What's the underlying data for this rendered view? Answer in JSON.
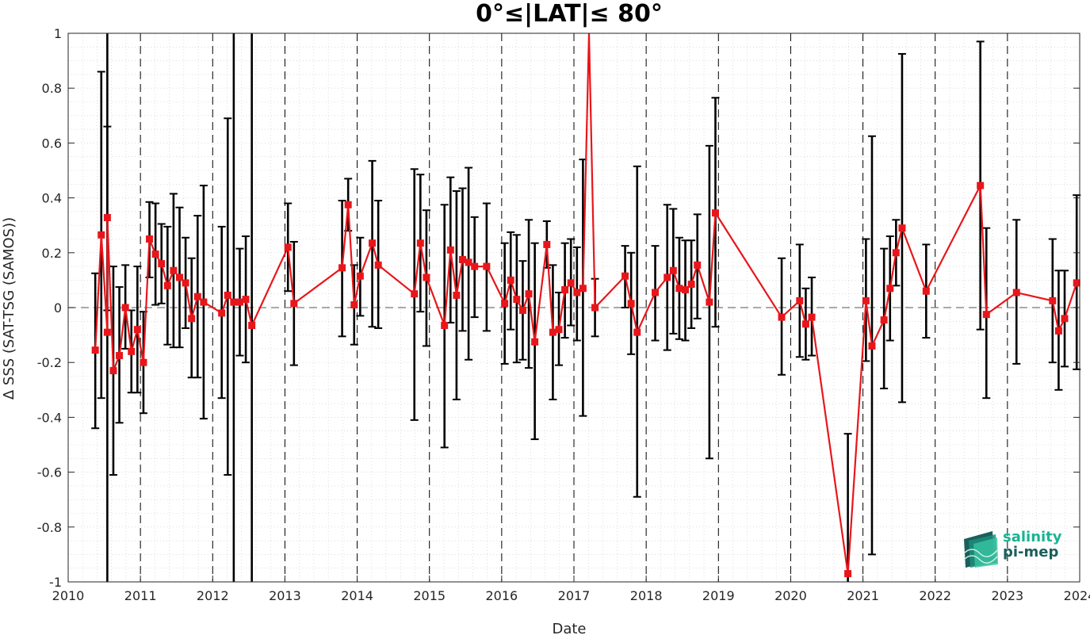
{
  "chart_data": {
    "type": "line",
    "title": "0°≤|LAT|≤ 80°",
    "xlabel": "Date",
    "ylabel": "Δ SSS (SAT-TSG (SAMOS))",
    "xlim": [
      2010.0,
      2024.0
    ],
    "ylim": [
      -1,
      1
    ],
    "x_ticks": [
      "2010",
      "2011",
      "2012",
      "2013",
      "2014",
      "2015",
      "2016",
      "2017",
      "2018",
      "2019",
      "2020",
      "2021",
      "2022",
      "2023",
      "2024"
    ],
    "y_ticks": [
      "1",
      "0.8",
      "0.6",
      "0.4",
      "0.2",
      "0",
      "-0.2",
      "-0.4",
      "-0.6",
      "-0.8",
      "-1"
    ],
    "grid": "dotted minor and major",
    "reference_line": 0,
    "year_separators": "dashed vertical lines",
    "series": [
      {
        "color": "#e8161b",
        "marker": "square",
        "errorbar_color": "#000000",
        "points": [
          {
            "date": "2010-05",
            "y": -0.155,
            "lo": -0.44,
            "hi": 0.125
          },
          {
            "date": "2010-06",
            "y": 0.265,
            "lo": -0.33,
            "hi": 0.86
          },
          {
            "date": "2010-07",
            "y": -0.09,
            "lo": -1.0,
            "hi": 1.0
          },
          {
            "date": "2010-07",
            "y": 0.328,
            "lo": -0.01,
            "hi": 0.66
          },
          {
            "date": "2010-08",
            "y": -0.23,
            "lo": -0.61,
            "hi": 0.15
          },
          {
            "date": "2010-09",
            "y": -0.175,
            "lo": -0.42,
            "hi": 0.075
          },
          {
            "date": "2010-10",
            "y": 0.0,
            "lo": -0.15,
            "hi": 0.155
          },
          {
            "date": "2010-11",
            "y": -0.16,
            "lo": -0.31,
            "hi": -0.01
          },
          {
            "date": "2010-12",
            "y": -0.08,
            "lo": -0.31,
            "hi": 0.15
          },
          {
            "date": "2011-01",
            "y": -0.2,
            "lo": -0.385,
            "hi": -0.015
          },
          {
            "date": "2011-02",
            "y": 0.25,
            "lo": 0.11,
            "hi": 0.385
          },
          {
            "date": "2011-03",
            "y": 0.195,
            "lo": 0.01,
            "hi": 0.38
          },
          {
            "date": "2011-04",
            "y": 0.16,
            "lo": 0.015,
            "hi": 0.305
          },
          {
            "date": "2011-05",
            "y": 0.08,
            "lo": -0.135,
            "hi": 0.295
          },
          {
            "date": "2011-06",
            "y": 0.135,
            "lo": -0.145,
            "hi": 0.415
          },
          {
            "date": "2011-07",
            "y": 0.11,
            "lo": -0.145,
            "hi": 0.365
          },
          {
            "date": "2011-08",
            "y": 0.09,
            "lo": -0.075,
            "hi": 0.255
          },
          {
            "date": "2011-09",
            "y": -0.04,
            "lo": -0.255,
            "hi": 0.18
          },
          {
            "date": "2011-10",
            "y": 0.04,
            "lo": -0.255,
            "hi": 0.335
          },
          {
            "date": "2011-11",
            "y": 0.02,
            "lo": -0.405,
            "hi": 0.445
          },
          {
            "date": "2012-02",
            "y": -0.02,
            "lo": -0.33,
            "hi": 0.295
          },
          {
            "date": "2012-03",
            "y": 0.045,
            "lo": -0.61,
            "hi": 0.69
          },
          {
            "date": "2012-04",
            "y": 0.02,
            "lo": -1.0,
            "hi": 1.0
          },
          {
            "date": "2012-05",
            "y": 0.02,
            "lo": -0.175,
            "hi": 0.215
          },
          {
            "date": "2012-06",
            "y": 0.03,
            "lo": -0.2,
            "hi": 0.26
          },
          {
            "date": "2012-07",
            "y": -0.065,
            "lo": -1.0,
            "hi": 1.0
          },
          {
            "date": "2013-01",
            "y": 0.22,
            "lo": 0.06,
            "hi": 0.38
          },
          {
            "date": "2013-02",
            "y": 0.015,
            "lo": -0.21,
            "hi": 0.24
          },
          {
            "date": "2013-10",
            "y": 0.145,
            "lo": -0.105,
            "hi": 0.39
          },
          {
            "date": "2013-11",
            "y": 0.375,
            "lo": 0.28,
            "hi": 0.47
          },
          {
            "date": "2013-12",
            "y": 0.01,
            "lo": -0.135,
            "hi": 0.155
          },
          {
            "date": "2014-01",
            "y": 0.115,
            "lo": -0.03,
            "hi": 0.255
          },
          {
            "date": "2014-03",
            "y": 0.235,
            "lo": -0.07,
            "hi": 0.535
          },
          {
            "date": "2014-04",
            "y": 0.155,
            "lo": -0.075,
            "hi": 0.39
          },
          {
            "date": "2014-10",
            "y": 0.05,
            "lo": -0.41,
            "hi": 0.505
          },
          {
            "date": "2014-11",
            "y": 0.235,
            "lo": -0.015,
            "hi": 0.485
          },
          {
            "date": "2014-12",
            "y": 0.11,
            "lo": -0.14,
            "hi": 0.355
          },
          {
            "date": "2015-03",
            "y": -0.065,
            "lo": -0.51,
            "hi": 0.375
          },
          {
            "date": "2015-04",
            "y": 0.21,
            "lo": -0.055,
            "hi": 0.475
          },
          {
            "date": "2015-05",
            "y": 0.045,
            "lo": -0.335,
            "hi": 0.425
          },
          {
            "date": "2015-06",
            "y": 0.175,
            "lo": -0.085,
            "hi": 0.435
          },
          {
            "date": "2015-07",
            "y": 0.165,
            "lo": -0.19,
            "hi": 0.51
          },
          {
            "date": "2015-08",
            "y": 0.15,
            "lo": -0.035,
            "hi": 0.33
          },
          {
            "date": "2015-10",
            "y": 0.15,
            "lo": -0.085,
            "hi": 0.38
          },
          {
            "date": "2016-01",
            "y": 0.015,
            "lo": -0.205,
            "hi": 0.235
          },
          {
            "date": "2016-02",
            "y": 0.1,
            "lo": -0.08,
            "hi": 0.275
          },
          {
            "date": "2016-03",
            "y": 0.03,
            "lo": -0.2,
            "hi": 0.265
          },
          {
            "date": "2016-04",
            "y": -0.01,
            "lo": -0.19,
            "hi": 0.17
          },
          {
            "date": "2016-05",
            "y": 0.05,
            "lo": -0.22,
            "hi": 0.32
          },
          {
            "date": "2016-06",
            "y": -0.125,
            "lo": -0.48,
            "hi": 0.235
          },
          {
            "date": "2016-08",
            "y": 0.23,
            "lo": 0.145,
            "hi": 0.315
          },
          {
            "date": "2016-09",
            "y": -0.09,
            "lo": -0.335,
            "hi": 0.155
          },
          {
            "date": "2016-10",
            "y": -0.08,
            "lo": -0.21,
            "hi": 0.055
          },
          {
            "date": "2016-11",
            "y": 0.065,
            "lo": -0.11,
            "hi": 0.235
          },
          {
            "date": "2016-12",
            "y": 0.09,
            "lo": -0.065,
            "hi": 0.25
          },
          {
            "date": "2017-01",
            "y": 0.055,
            "lo": -0.12,
            "hi": 0.22
          },
          {
            "date": "2017-02",
            "y": 0.07,
            "lo": -0.395,
            "hi": 0.54
          },
          {
            "date": "2017-03",
            "y": 1.0,
            "lo": 1.0,
            "hi": 1.0
          },
          {
            "date": "2017-04",
            "y": 0.0,
            "lo": -0.105,
            "hi": 0.105
          },
          {
            "date": "2017-09",
            "y": 0.115,
            "lo": 0.0,
            "hi": 0.225
          },
          {
            "date": "2017-10",
            "y": 0.015,
            "lo": -0.17,
            "hi": 0.2
          },
          {
            "date": "2017-11",
            "y": -0.09,
            "lo": -0.69,
            "hi": 0.515
          },
          {
            "date": "2018-02",
            "y": 0.055,
            "lo": -0.12,
            "hi": 0.225
          },
          {
            "date": "2018-04",
            "y": 0.11,
            "lo": -0.155,
            "hi": 0.375
          },
          {
            "date": "2018-05",
            "y": 0.135,
            "lo": -0.095,
            "hi": 0.36
          },
          {
            "date": "2018-06",
            "y": 0.07,
            "lo": -0.115,
            "hi": 0.255
          },
          {
            "date": "2018-07",
            "y": 0.065,
            "lo": -0.12,
            "hi": 0.245
          },
          {
            "date": "2018-08",
            "y": 0.085,
            "lo": -0.075,
            "hi": 0.245
          },
          {
            "date": "2018-09",
            "y": 0.155,
            "lo": -0.04,
            "hi": 0.34
          },
          {
            "date": "2018-11",
            "y": 0.02,
            "lo": -0.55,
            "hi": 0.59
          },
          {
            "date": "2018-12",
            "y": 0.345,
            "lo": -0.07,
            "hi": 0.765
          },
          {
            "date": "2019-11",
            "y": -0.035,
            "lo": -0.245,
            "hi": 0.18
          },
          {
            "date": "2020-02",
            "y": 0.025,
            "lo": -0.18,
            "hi": 0.23
          },
          {
            "date": "2020-03",
            "y": -0.06,
            "lo": -0.19,
            "hi": 0.07
          },
          {
            "date": "2020-04",
            "y": -0.035,
            "lo": -0.175,
            "hi": 0.11
          },
          {
            "date": "2020-10",
            "y": -0.97,
            "lo": -1.0,
            "hi": -0.46
          },
          {
            "date": "2021-01",
            "y": 0.025,
            "lo": -0.195,
            "hi": 0.25
          },
          {
            "date": "2021-02",
            "y": -0.14,
            "lo": -0.9,
            "hi": 0.625
          },
          {
            "date": "2021-04",
            "y": -0.045,
            "lo": -0.295,
            "hi": 0.215
          },
          {
            "date": "2021-05",
            "y": 0.07,
            "lo": -0.12,
            "hi": 0.26
          },
          {
            "date": "2021-06",
            "y": 0.2,
            "lo": 0.08,
            "hi": 0.32
          },
          {
            "date": "2021-07",
            "y": 0.29,
            "lo": -0.345,
            "hi": 0.925
          },
          {
            "date": "2021-11",
            "y": 0.06,
            "lo": -0.11,
            "hi": 0.23
          },
          {
            "date": "2022-08",
            "y": 0.445,
            "lo": -0.08,
            "hi": 0.97
          },
          {
            "date": "2022-09",
            "y": -0.025,
            "lo": -0.33,
            "hi": 0.29
          },
          {
            "date": "2023-02",
            "y": 0.055,
            "lo": -0.205,
            "hi": 0.32
          },
          {
            "date": "2023-08",
            "y": 0.025,
            "lo": -0.2,
            "hi": 0.25
          },
          {
            "date": "2023-09",
            "y": -0.085,
            "lo": -0.3,
            "hi": 0.135
          },
          {
            "date": "2023-10",
            "y": -0.04,
            "lo": -0.215,
            "hi": 0.135
          },
          {
            "date": "2023-12",
            "y": 0.09,
            "lo": -0.225,
            "hi": 0.41
          }
        ]
      }
    ]
  },
  "logo": {
    "line1": "salinity",
    "line2": "pi-mep",
    "colors": [
      "#1ab394",
      "#1a5f5a"
    ]
  }
}
